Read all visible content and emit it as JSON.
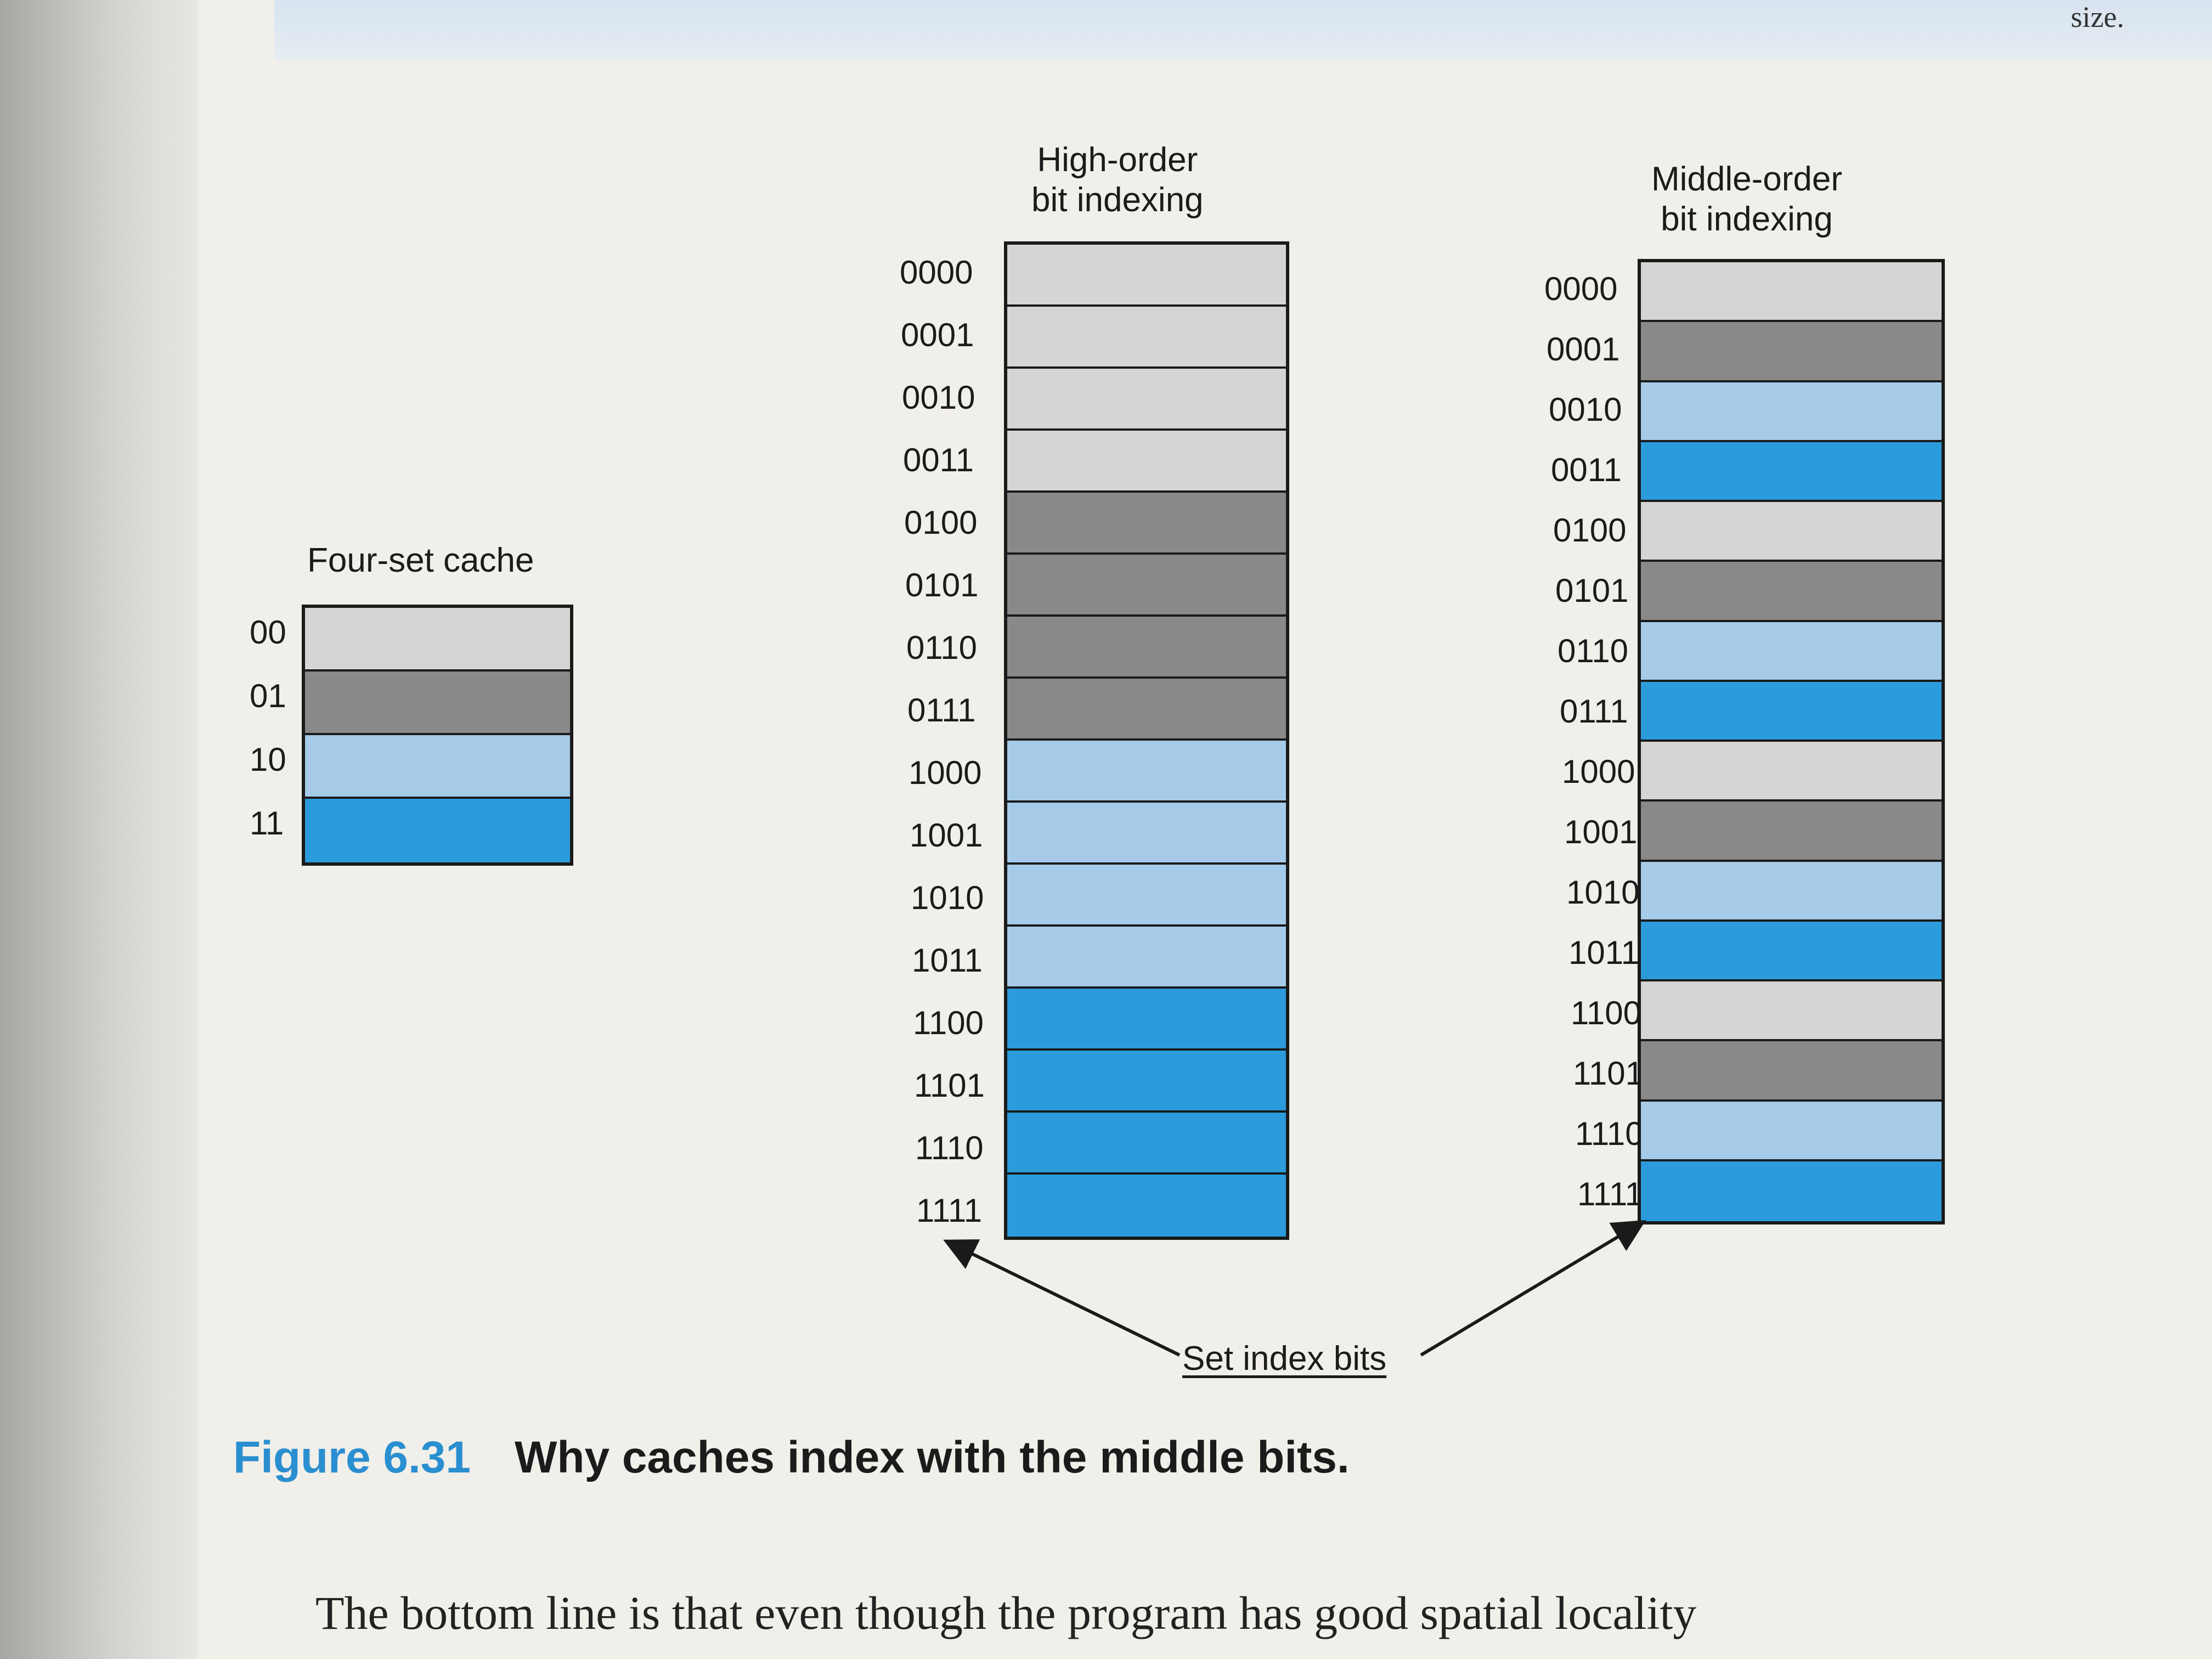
{
  "top_fragment": "size.",
  "four_set": {
    "title": "Four-set cache",
    "rows": [
      {
        "label": "00",
        "color": "#d6d5d3"
      },
      {
        "label": "01",
        "color": "#8a8988"
      },
      {
        "label": "10",
        "color": "#a5cbe9"
      },
      {
        "label": "11",
        "color": "#2b9bdb"
      }
    ]
  },
  "high_order": {
    "title": "High-order\nbit indexing",
    "rows": [
      "0000",
      "0001",
      "0010",
      "0011",
      "0100",
      "0101",
      "0110",
      "0111",
      "1000",
      "1001",
      "1010",
      "1011",
      "1100",
      "1101",
      "1110",
      "1111"
    ],
    "set_index": [
      0,
      0,
      0,
      0,
      1,
      1,
      1,
      1,
      2,
      2,
      2,
      2,
      3,
      3,
      3,
      3
    ]
  },
  "middle_order": {
    "title": "Middle-order\nbit indexing",
    "rows": [
      "0000",
      "0001",
      "0010",
      "0011",
      "0100",
      "0101",
      "0110",
      "0111",
      "1000",
      "1001",
      "1010",
      "1011",
      "1100",
      "1101",
      "1110",
      "1111"
    ],
    "set_index": [
      0,
      1,
      2,
      3,
      0,
      1,
      2,
      3,
      0,
      1,
      2,
      3,
      0,
      1,
      2,
      3
    ]
  },
  "set_index_label": "Set index bits",
  "caption": {
    "figure": "Figure 6.31",
    "title": "Why caches index with the middle bits."
  },
  "body_text": "The bottom line is that even though the program has good spatial locality"
}
